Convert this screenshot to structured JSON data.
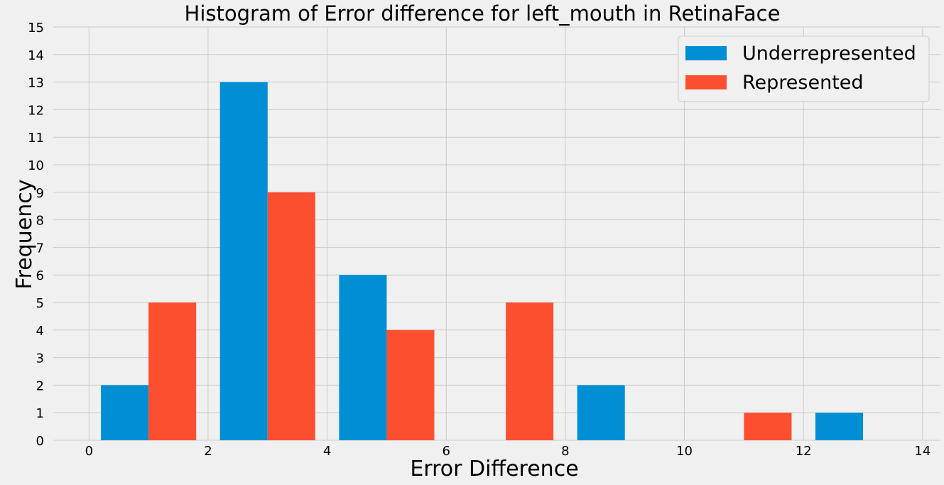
{
  "chart_data": {
    "type": "bar",
    "title": "Histogram of Error difference for left_mouth in RetinaFace",
    "xlabel": "Error Difference",
    "ylabel": "Frequency",
    "xlim": [
      -0.6,
      14.3
    ],
    "ylim": [
      0,
      15
    ],
    "xticks": [
      "0",
      "2",
      "4",
      "6",
      "8",
      "10",
      "12",
      "14"
    ],
    "yticks": [
      "0",
      "1",
      "2",
      "3",
      "4",
      "5",
      "6",
      "7",
      "8",
      "9",
      "10",
      "11",
      "12",
      "13",
      "14",
      "15"
    ],
    "bins": [
      [
        0.2,
        1.8
      ],
      [
        2.2,
        3.8
      ],
      [
        4.2,
        5.8
      ],
      [
        6.2,
        7.8
      ],
      [
        8.2,
        9.8
      ],
      [
        10.2,
        11.8
      ],
      [
        12.2,
        13.8
      ]
    ],
    "series": [
      {
        "name": "Underrepresented",
        "color": "#008fd5",
        "values": [
          2,
          13,
          6,
          0,
          2,
          0,
          1
        ]
      },
      {
        "name": "Represented",
        "color": "#fc4f30",
        "values": [
          5,
          9,
          4,
          5,
          0,
          1,
          0
        ]
      }
    ],
    "grid": true,
    "legend_position": "top-right"
  }
}
